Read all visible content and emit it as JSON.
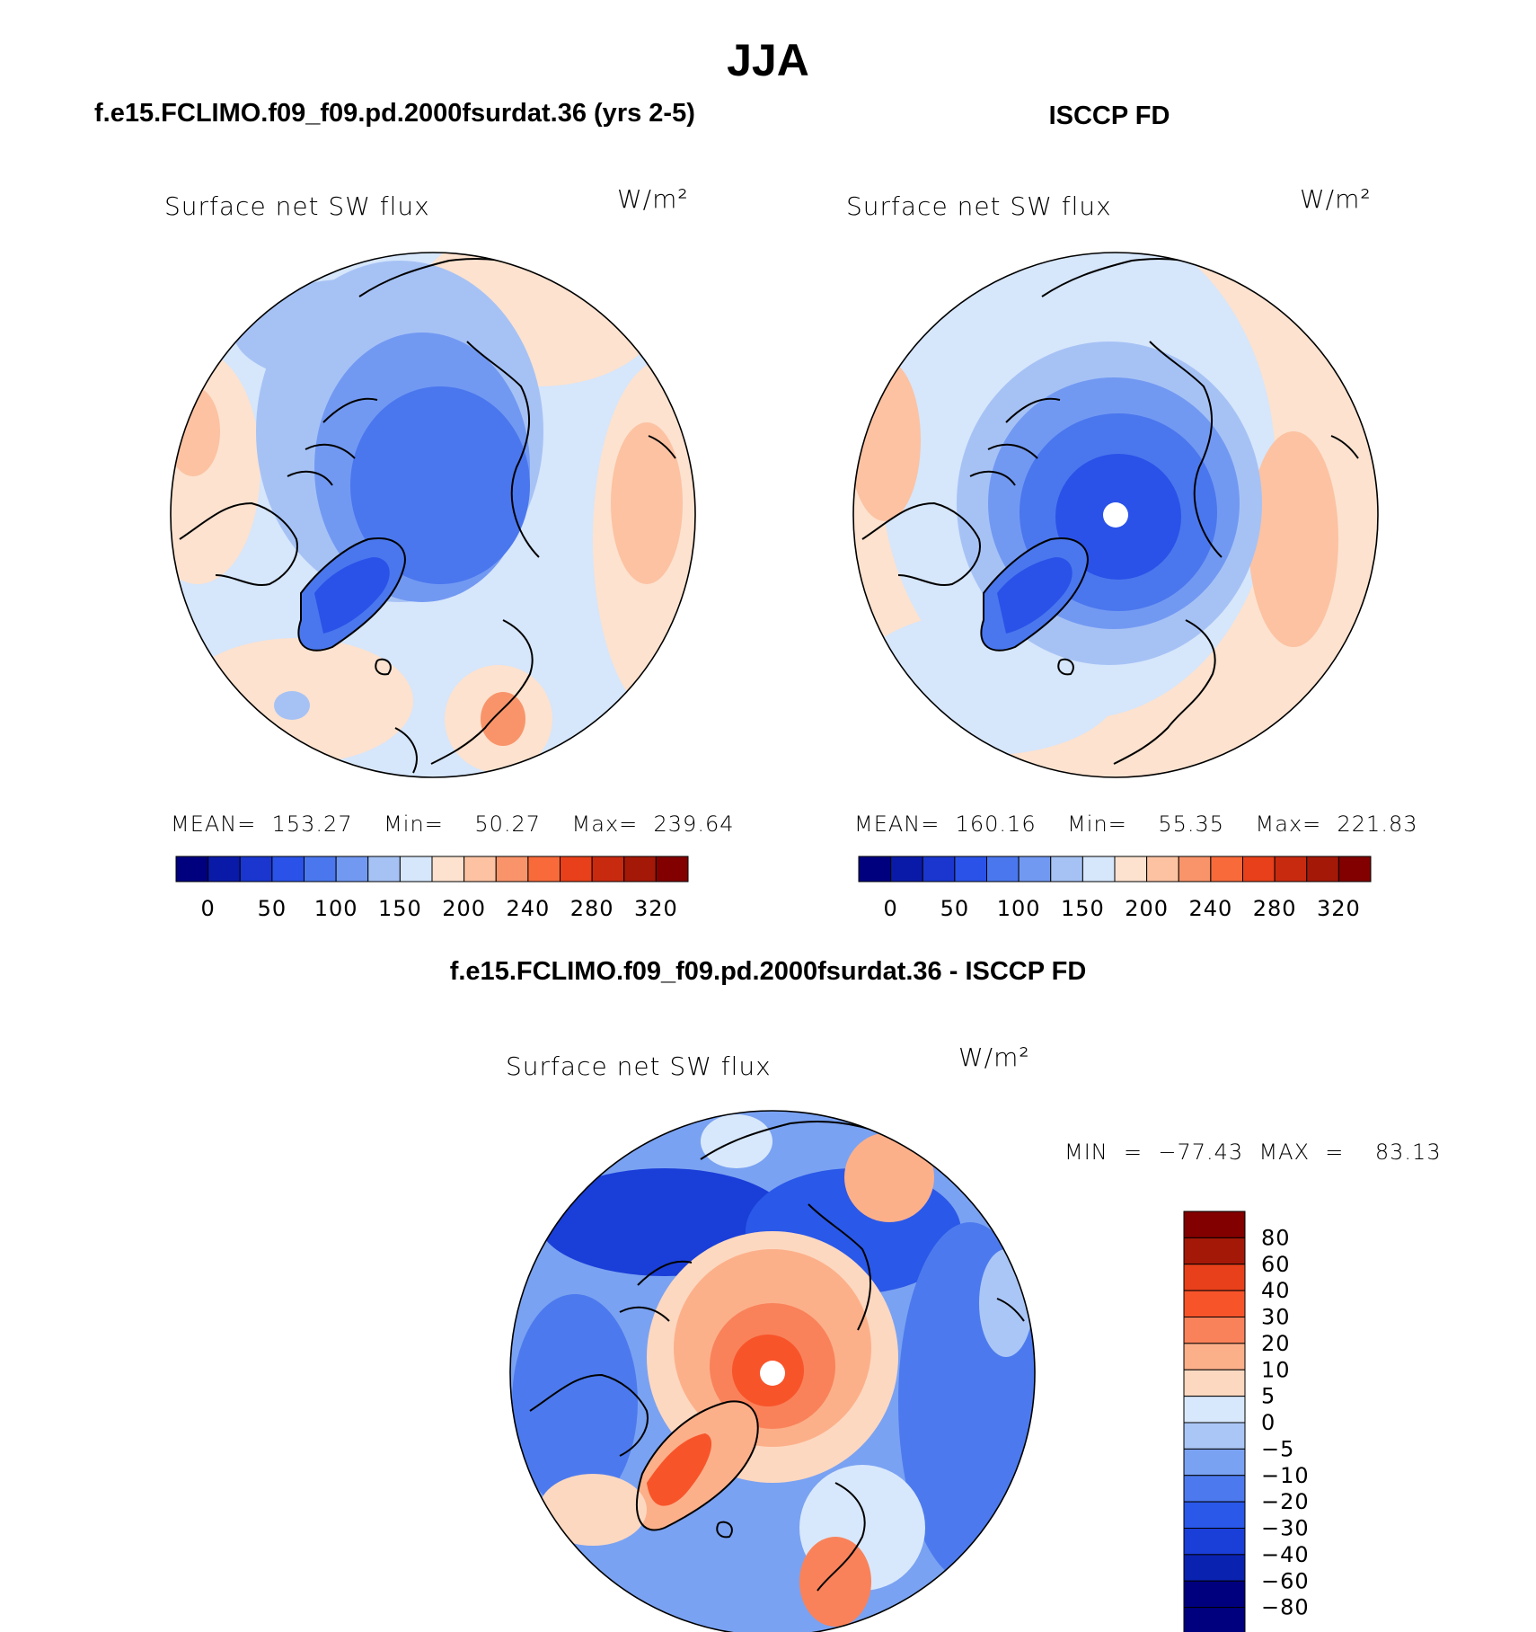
{
  "page": {
    "title": "JJA",
    "subtitle_left": "f.e15.FCLIMO.f09_f09.pd.2000fsurdat.36 (yrs 2-5)",
    "subtitle_right": "ISCCP FD",
    "subtitle_diff": "f.e15.FCLIMO.f09_f09.pd.2000fsurdat.36 - ISCCP FD"
  },
  "panels": {
    "model": {
      "variable": "Surface net SW flux",
      "units": "W/m²",
      "stats": "MEAN=  153.27    Min=    50.27    Max=  239.64"
    },
    "obs": {
      "variable": "Surface net SW flux",
      "units": "W/m²",
      "stats": "MEAN=  160.16    Min=    55.35    Max=  221.83"
    },
    "diff": {
      "variable": "Surface net SW flux",
      "units": "W/m²",
      "stats": "MIN  =  −77.43  MAX  =    83.13"
    }
  },
  "colorbar_horizontal": {
    "labels": [
      "0",
      "50",
      "100",
      "150",
      "200",
      "240",
      "280",
      "320"
    ],
    "colors": [
      "#00007f",
      "#0a1aa8",
      "#1a36cf",
      "#2a52e8",
      "#4a77ee",
      "#7299f2",
      "#a6c2f5",
      "#d6e6fb",
      "#fce2cf",
      "#fcc2a2",
      "#f9946a",
      "#f86a3a",
      "#e8401a",
      "#c82a10",
      "#a41808",
      "#820000"
    ]
  },
  "colorbar_vertical": {
    "labels": [
      "80",
      "60",
      "40",
      "30",
      "20",
      "10",
      "5",
      "0",
      "−5",
      "−10",
      "−20",
      "−30",
      "−40",
      "−60",
      "−80"
    ],
    "colors": [
      "#820000",
      "#a41808",
      "#e8401a",
      "#f8542a",
      "#f9825a",
      "#fcb08a",
      "#fdd8c0",
      "#d8e8fc",
      "#aac6f6",
      "#7aa2f2",
      "#4c7aee",
      "#2a58e8",
      "#1a3ed8",
      "#0a22b0",
      "#00007f"
    ]
  },
  "chart_data": [
    {
      "type": "heatmap",
      "title": "Surface net SW flux",
      "map": "north-polar-stereographic",
      "season": "JJA",
      "source": "f.e15.FCLIMO.f09_f09.pd.2000fsurdat.36 (yrs 2-5)",
      "units": "W/m²",
      "mean": 153.27,
      "min": 50.27,
      "max": 239.64,
      "levels": [
        0,
        50,
        100,
        150,
        200,
        240,
        280,
        320
      ]
    },
    {
      "type": "heatmap",
      "title": "Surface net SW flux",
      "map": "north-polar-stereographic",
      "season": "JJA",
      "source": "ISCCP FD",
      "units": "W/m²",
      "mean": 160.16,
      "min": 55.35,
      "max": 221.83,
      "levels": [
        0,
        50,
        100,
        150,
        200,
        240,
        280,
        320
      ]
    },
    {
      "type": "heatmap",
      "title": "Surface net SW flux",
      "map": "north-polar-stereographic",
      "season": "JJA",
      "source": "f.e15.FCLIMO.f09_f09.pd.2000fsurdat.36 - ISCCP FD",
      "units": "W/m²",
      "min": -77.43,
      "max": 83.13,
      "levels": [
        -80,
        -60,
        -40,
        -30,
        -20,
        -10,
        -5,
        0,
        5,
        10,
        20,
        30,
        40,
        60,
        80
      ]
    }
  ]
}
